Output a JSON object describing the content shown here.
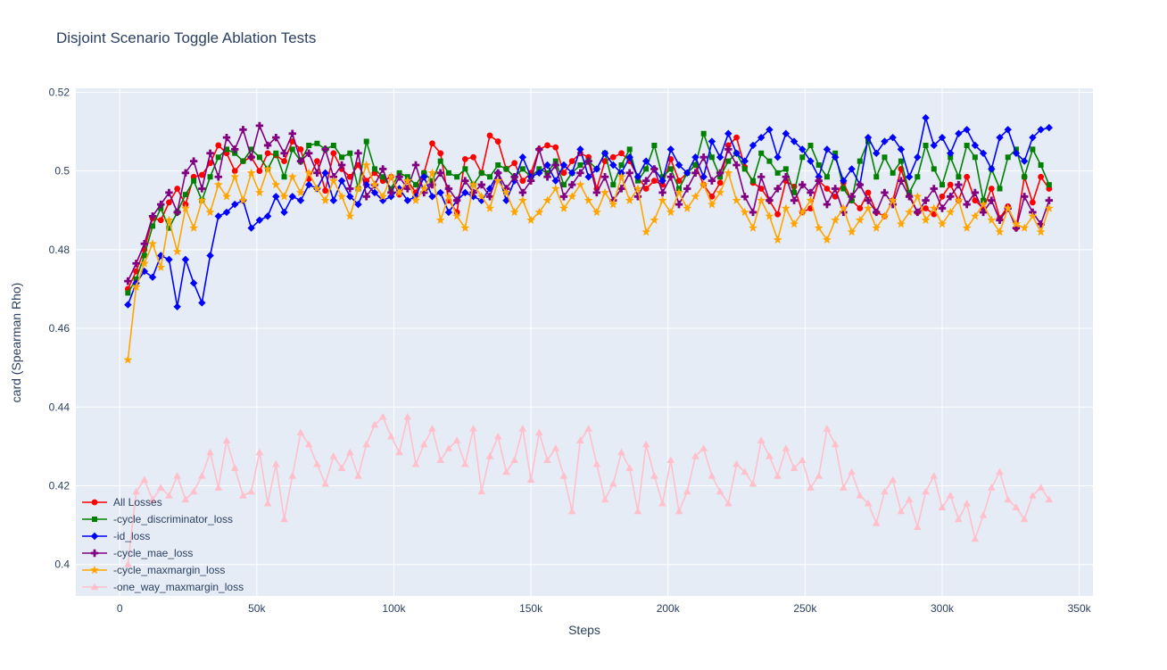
{
  "header": {
    "title": "Disjoint Scenario Toggle Ablation Tests"
  },
  "chart_data": {
    "type": "line",
    "title": "Disjoint Scenario Toggle Ablation Tests",
    "xlabel": "Steps",
    "ylabel": "card (Spearman Rho)",
    "x_range": [
      -16000,
      355000
    ],
    "y_range": [
      0.392,
      0.521
    ],
    "grid": true,
    "legend_position": "inside bottom-left",
    "colors": {
      "plot_bg": "#e5ecf6",
      "paper_bg": "#ffffff",
      "grid": "#ffffff",
      "text": "#2a3f5f"
    },
    "x_ticks": {
      "values": [
        0,
        50000,
        100000,
        150000,
        200000,
        250000,
        300000,
        350000
      ],
      "labels": [
        "0",
        "50k",
        "100k",
        "150k",
        "200k",
        "250k",
        "300k",
        "350k"
      ]
    },
    "y_ticks": {
      "values": [
        0.4,
        0.42,
        0.44,
        0.46,
        0.48,
        0.5,
        0.52
      ],
      "labels": [
        "0.4",
        "0.42",
        "0.44",
        "0.46",
        "0.48",
        "0.5",
        "0.52"
      ]
    },
    "x_start": 3000,
    "x_step": 3000,
    "series": [
      {
        "name": "All Losses",
        "color": "#ff0000",
        "marker": "circle",
        "values": [
          0.47,
          0.4745,
          0.48,
          0.488,
          0.4875,
          0.492,
          0.4955,
          0.4915,
          0.4985,
          0.499,
          0.502,
          0.5065,
          0.5045,
          0.5,
          0.5025,
          0.5035,
          0.5,
          0.5045,
          0.504,
          0.5025,
          0.5075,
          0.5055,
          0.498,
          0.5025,
          0.495,
          0.5045,
          0.5005,
          0.4985,
          0.5015,
          0.4975,
          0.4995,
          0.4975,
          0.4985,
          0.494,
          0.4975,
          0.4945,
          0.4995,
          0.507,
          0.5045,
          0.4925,
          0.4895,
          0.503,
          0.5035,
          0.4995,
          0.509,
          0.5075,
          0.5005,
          0.502,
          0.4975,
          0.4995,
          0.5055,
          0.5065,
          0.506,
          0.4995,
          0.5025,
          0.5045,
          0.5035,
          0.4955,
          0.5025,
          0.5035,
          0.5045,
          0.5025,
          0.4985,
          0.4955,
          0.4975,
          0.4965,
          0.503,
          0.4975,
          0.4995,
          0.5015,
          0.4965,
          0.4935,
          0.497,
          0.5065,
          0.5085,
          0.501,
          0.497,
          0.4955,
          0.4925,
          0.489,
          0.4975,
          0.496,
          0.4895,
          0.4905,
          0.4975,
          0.4955,
          0.4935,
          0.497,
          0.4925,
          0.4905,
          0.4945,
          0.4895,
          0.4885,
          0.4925,
          0.5005,
          0.494,
          0.4895,
          0.4905,
          0.489,
          0.4935,
          0.4965,
          0.4925,
          0.4985,
          0.4925,
          0.4905,
          0.4955,
          0.488,
          0.491,
          0.4855,
          0.4985,
          0.492,
          0.4985,
          0.4955
        ]
      },
      {
        "name": "-cycle_discriminator_loss",
        "color": "#008000",
        "marker": "square",
        "values": [
          0.469,
          0.4725,
          0.4785,
          0.486,
          0.4905,
          0.4855,
          0.4895,
          0.494,
          0.4975,
          0.4925,
          0.4985,
          0.5035,
          0.5055,
          0.5045,
          0.5025,
          0.5055,
          0.5035,
          0.5005,
          0.5045,
          0.4985,
          0.5055,
          0.5025,
          0.5065,
          0.507,
          0.5055,
          0.5065,
          0.5035,
          0.5045,
          0.4955,
          0.5075,
          0.5005,
          0.4985,
          0.4955,
          0.4995,
          0.4985,
          0.4965,
          0.4995,
          0.4975,
          0.5025,
          0.4995,
          0.4985,
          0.5005,
          0.4965,
          0.4995,
          0.4985,
          0.5015,
          0.5005,
          0.4985,
          0.5005,
          0.4985,
          0.5005,
          0.4995,
          0.5025,
          0.4965,
          0.4995,
          0.5015,
          0.5025,
          0.5005,
          0.5045,
          0.4965,
          0.5015,
          0.5055,
          0.4975,
          0.5005,
          0.5065,
          0.4985,
          0.5005,
          0.4955,
          0.4995,
          0.5015,
          0.5095,
          0.5035,
          0.4985,
          0.5025,
          0.5045,
          0.5005,
          0.4975,
          0.5045,
          0.5025,
          0.4995,
          0.5005,
          0.4945,
          0.5035,
          0.5065,
          0.5015,
          0.4985,
          0.5045,
          0.4955,
          0.4925,
          0.5025,
          0.5075,
          0.4985,
          0.5035,
          0.4995,
          0.5025,
          0.4945,
          0.4985,
          0.5065,
          0.5005,
          0.4965,
          0.5035,
          0.4985,
          0.5065,
          0.5035,
          0.4925,
          0.5005,
          0.4955,
          0.5035,
          0.5055,
          0.4985,
          0.5055,
          0.5015,
          0.4965
        ]
      },
      {
        "name": "-id_loss",
        "color": "#0000ff",
        "marker": "diamond",
        "values": [
          0.466,
          0.4715,
          0.4745,
          0.473,
          0.4785,
          0.4775,
          0.4655,
          0.4775,
          0.4715,
          0.4665,
          0.4785,
          0.4885,
          0.4895,
          0.4915,
          0.4925,
          0.4855,
          0.4875,
          0.4885,
          0.4935,
          0.4895,
          0.4935,
          0.4925,
          0.4965,
          0.4955,
          0.4995,
          0.4925,
          0.4975,
          0.4935,
          0.4915,
          0.4965,
          0.4945,
          0.4925,
          0.4935,
          0.4955,
          0.4925,
          0.4935,
          0.4985,
          0.4935,
          0.4945,
          0.4895,
          0.4925,
          0.4945,
          0.4935,
          0.4925,
          0.4955,
          0.4995,
          0.4925,
          0.4975,
          0.5035,
          0.4985,
          0.4995,
          0.5015,
          0.4975,
          0.5015,
          0.4995,
          0.5055,
          0.4985,
          0.5005,
          0.5045,
          0.5015,
          0.4995,
          0.5035,
          0.4985,
          0.5025,
          0.5005,
          0.4975,
          0.5055,
          0.5015,
          0.4995,
          0.5035,
          0.4985,
          0.5075,
          0.5035,
          0.5095,
          0.5045,
          0.5025,
          0.5065,
          0.5085,
          0.5105,
          0.5035,
          0.5095,
          0.5075,
          0.5055,
          0.5025,
          0.4985,
          0.5055,
          0.5035,
          0.4975,
          0.5005,
          0.4965,
          0.5085,
          0.5045,
          0.5075,
          0.5085,
          0.5055,
          0.4985,
          0.5035,
          0.5135,
          0.5065,
          0.5085,
          0.5045,
          0.5095,
          0.5105,
          0.5065,
          0.5045,
          0.5005,
          0.5085,
          0.5105,
          0.5045,
          0.5025,
          0.5085,
          0.5105,
          0.511
        ]
      },
      {
        "name": "-cycle_mae_loss",
        "color": "#800080",
        "marker": "cross",
        "values": [
          0.472,
          0.4765,
          0.4815,
          0.4885,
          0.4915,
          0.4945,
          0.4895,
          0.4995,
          0.5025,
          0.4955,
          0.5045,
          0.4985,
          0.5085,
          0.5055,
          0.5105,
          0.5035,
          0.5115,
          0.5065,
          0.5085,
          0.5045,
          0.5095,
          0.5025,
          0.5045,
          0.4995,
          0.5055,
          0.4985,
          0.5015,
          0.4955,
          0.5045,
          0.4935,
          0.4965,
          0.5005,
          0.4945,
          0.4985,
          0.4955,
          0.5015,
          0.4945,
          0.4965,
          0.4995,
          0.4955,
          0.4925,
          0.4975,
          0.4945,
          0.4965,
          0.4935,
          0.4995,
          0.4955,
          0.4985,
          0.4945,
          0.4975,
          0.5055,
          0.4985,
          0.5015,
          0.4935,
          0.4965,
          0.4995,
          0.5025,
          0.4945,
          0.4985,
          0.4925,
          0.4955,
          0.4995,
          0.4935,
          0.4975,
          0.5005,
          0.4945,
          0.4985,
          0.4915,
          0.4955,
          0.4995,
          0.5035,
          0.4975,
          0.4995,
          0.5055,
          0.5015,
          0.4935,
          0.4895,
          0.4985,
          0.4925,
          0.4955,
          0.4985,
          0.4925,
          0.4965,
          0.4945,
          0.4975,
          0.4915,
          0.4955,
          0.4895,
          0.4935,
          0.4965,
          0.4925,
          0.4895,
          0.4945,
          0.4915,
          0.4975,
          0.4935,
          0.4895,
          0.4925,
          0.4955,
          0.4905,
          0.4935,
          0.4965,
          0.4915,
          0.4945,
          0.4895,
          0.4925,
          0.4875,
          0.4905,
          0.4855,
          0.4935,
          0.4895,
          0.4865,
          0.4925
        ]
      },
      {
        "name": "-cycle_maxmargin_loss",
        "color": "#ffa500",
        "marker": "star",
        "values": [
          0.452,
          0.4705,
          0.4765,
          0.4815,
          0.4755,
          0.4875,
          0.4795,
          0.4905,
          0.4855,
          0.4925,
          0.4895,
          0.4965,
          0.4935,
          0.4985,
          0.4925,
          0.4995,
          0.4945,
          0.5005,
          0.4965,
          0.4935,
          0.4985,
          0.4945,
          0.4995,
          0.4955,
          0.4925,
          0.4975,
          0.4935,
          0.4885,
          0.4955,
          0.5015,
          0.4965,
          0.4935,
          0.4985,
          0.4945,
          0.4975,
          0.4925,
          0.4955,
          0.4995,
          0.4875,
          0.4935,
          0.4885,
          0.4855,
          0.4965,
          0.4935,
          0.4905,
          0.4975,
          0.4945,
          0.4895,
          0.4925,
          0.4875,
          0.4895,
          0.4925,
          0.4955,
          0.4905,
          0.4935,
          0.4965,
          0.4925,
          0.4895,
          0.4945,
          0.4915,
          0.4985,
          0.4925,
          0.4955,
          0.4845,
          0.4875,
          0.4925,
          0.4895,
          0.4945,
          0.4905,
          0.4935,
          0.4965,
          0.4915,
          0.4945,
          0.4995,
          0.4925,
          0.4895,
          0.4855,
          0.4925,
          0.4885,
          0.4825,
          0.4905,
          0.4865,
          0.4895,
          0.4925,
          0.4855,
          0.4825,
          0.4875,
          0.4905,
          0.4845,
          0.4875,
          0.4905,
          0.4855,
          0.4885,
          0.4925,
          0.4865,
          0.4895,
          0.4935,
          0.4875,
          0.4905,
          0.4865,
          0.4895,
          0.4925,
          0.4855,
          0.4885,
          0.4915,
          0.4875,
          0.4845,
          0.4905,
          0.4865,
          0.4855,
          0.4885,
          0.4845,
          0.4905
        ]
      },
      {
        "name": "-one_way_maxmargin_loss",
        "color": "#ffc0cb",
        "marker": "triangle-up",
        "values": [
          0.4,
          0.4185,
          0.4215,
          0.4165,
          0.4195,
          0.4175,
          0.4225,
          0.4165,
          0.4185,
          0.4225,
          0.4285,
          0.4195,
          0.4315,
          0.4245,
          0.4175,
          0.4185,
          0.4285,
          0.4155,
          0.4255,
          0.4115,
          0.4225,
          0.4335,
          0.4305,
          0.4255,
          0.4205,
          0.4275,
          0.4245,
          0.4285,
          0.4225,
          0.4305,
          0.4355,
          0.4375,
          0.4325,
          0.4285,
          0.4375,
          0.4255,
          0.4305,
          0.4345,
          0.4265,
          0.4295,
          0.4315,
          0.4255,
          0.4345,
          0.4185,
          0.4275,
          0.4325,
          0.4235,
          0.4265,
          0.4345,
          0.4215,
          0.4335,
          0.4265,
          0.4295,
          0.4225,
          0.4135,
          0.4315,
          0.4345,
          0.4255,
          0.4165,
          0.4205,
          0.4285,
          0.4245,
          0.4135,
          0.4305,
          0.4225,
          0.4155,
          0.4265,
          0.4135,
          0.4185,
          0.4275,
          0.4295,
          0.4225,
          0.4185,
          0.4155,
          0.4255,
          0.4235,
          0.4205,
          0.4315,
          0.4275,
          0.4225,
          0.4295,
          0.4245,
          0.4265,
          0.4195,
          0.4225,
          0.4345,
          0.4305,
          0.4195,
          0.4235,
          0.4175,
          0.4155,
          0.4105,
          0.4185,
          0.4215,
          0.4135,
          0.4165,
          0.4095,
          0.4185,
          0.4225,
          0.4145,
          0.4175,
          0.4115,
          0.4155,
          0.4065,
          0.4125,
          0.4195,
          0.4235,
          0.4165,
          0.4145,
          0.4115,
          0.4175,
          0.4195,
          0.4165
        ]
      }
    ]
  }
}
